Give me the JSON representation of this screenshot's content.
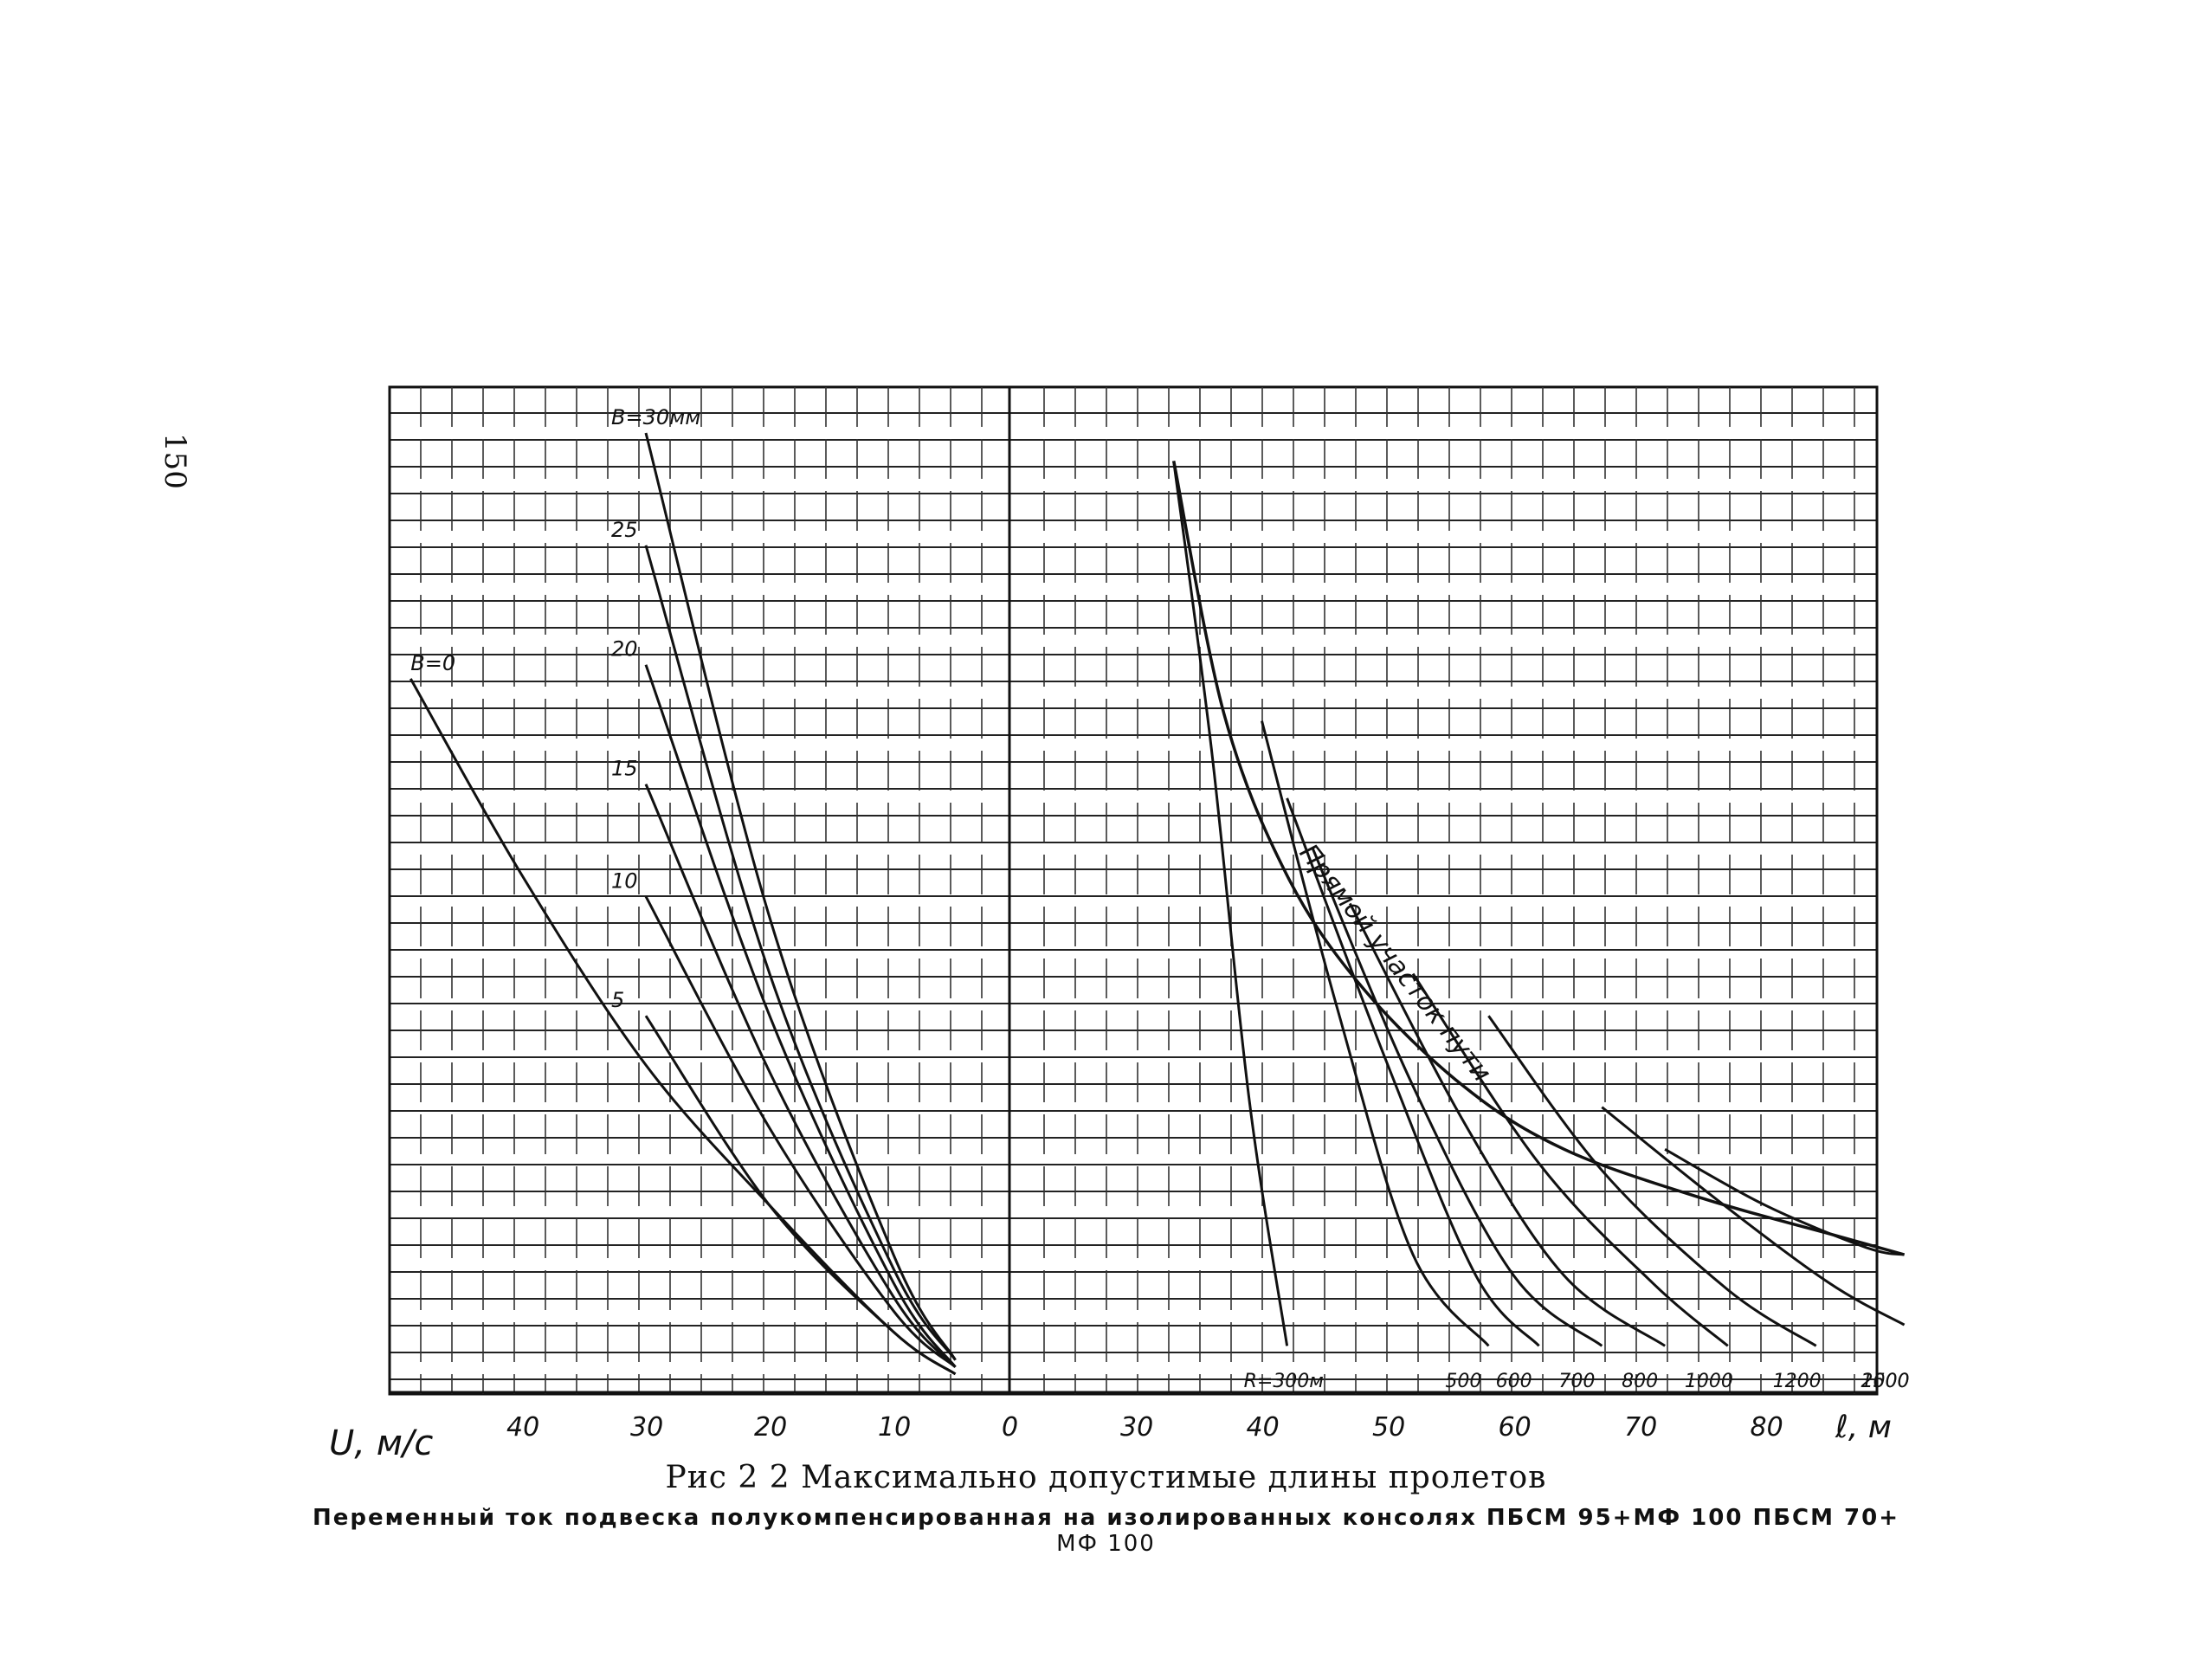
{
  "page_number": "150",
  "caption": {
    "title": "Рис 2 2 Максимально допустимые длины пролетов",
    "subtitle_line1": "Переменный ток подвеска полукомпенсированная на изолированных консолях ПБСМ 95+МФ 100 ПБСМ 70+",
    "subtitle_line2": "МФ 100"
  },
  "chart_data": [
    {
      "type": "line",
      "panel": "left",
      "xlabel": "U, м/с",
      "x_ticks": [
        "40",
        "30",
        "20",
        "10",
        "0"
      ],
      "x_tick_values": [
        40,
        30,
        20,
        10,
        0
      ],
      "x_reversed": true,
      "grid": true,
      "series": [
        {
          "name": "B=0",
          "points": [
            [
              49,
              1.0
            ],
            [
              40,
              0.72
            ],
            [
              30,
              0.45
            ],
            [
              20,
              0.25
            ],
            [
              10,
              0.07
            ],
            [
              5,
              0.01
            ]
          ]
        },
        {
          "name": "5",
          "points": [
            [
              30,
              0.52
            ],
            [
              20,
              0.25
            ],
            [
              10,
              0.07
            ],
            [
              5,
              0.01
            ]
          ]
        },
        {
          "name": "10",
          "points": [
            [
              30,
              0.69
            ],
            [
              20,
              0.36
            ],
            [
              10,
              0.1
            ],
            [
              5,
              0.02
            ]
          ]
        },
        {
          "name": "15",
          "points": [
            [
              30,
              0.85
            ],
            [
              20,
              0.44
            ],
            [
              10,
              0.12
            ],
            [
              5,
              0.02
            ]
          ]
        },
        {
          "name": "20",
          "points": [
            [
              30,
              1.02
            ],
            [
              20,
              0.52
            ],
            [
              10,
              0.14
            ],
            [
              5,
              0.02
            ]
          ]
        },
        {
          "name": "25",
          "points": [
            [
              30,
              1.19
            ],
            [
              20,
              0.58
            ],
            [
              10,
              0.16
            ],
            [
              5,
              0.03
            ]
          ]
        },
        {
          "name": "B=30мм",
          "points": [
            [
              30,
              1.35
            ],
            [
              20,
              0.66
            ],
            [
              10,
              0.18
            ],
            [
              5,
              0.03
            ]
          ]
        }
      ]
    },
    {
      "type": "line",
      "panel": "right",
      "xlabel": "ℓ, м",
      "x_ticks": [
        "30",
        "40",
        "50",
        "60",
        "70",
        "80"
      ],
      "x_tick_values": [
        30,
        40,
        50,
        60,
        70,
        80
      ],
      "grid": true,
      "envelope_label": "Прямой участок пути",
      "series": [
        {
          "name": "R=300м",
          "points": [
            [
              33,
              1.31
            ],
            [
              36,
              0.9
            ],
            [
              39,
              0.4
            ],
            [
              42,
              0.05
            ]
          ]
        },
        {
          "name": "500",
          "points": [
            [
              40,
              0.94
            ],
            [
              46,
              0.53
            ],
            [
              52,
              0.18
            ],
            [
              58,
              0.05
            ]
          ]
        },
        {
          "name": "600",
          "points": [
            [
              42,
              0.83
            ],
            [
              50,
              0.45
            ],
            [
              57,
              0.15
            ],
            [
              62,
              0.05
            ]
          ]
        },
        {
          "name": "700",
          "points": [
            [
              44,
              0.76
            ],
            [
              52,
              0.42
            ],
            [
              60,
              0.15
            ],
            [
              67,
              0.05
            ]
          ]
        },
        {
          "name": "800",
          "points": [
            [
              47,
              0.68
            ],
            [
              56,
              0.37
            ],
            [
              64,
              0.15
            ],
            [
              72,
              0.05
            ]
          ]
        },
        {
          "name": "1000",
          "points": [
            [
              52,
              0.58
            ],
            [
              62,
              0.31
            ],
            [
              71,
              0.14
            ],
            [
              77,
              0.05
            ]
          ]
        },
        {
          "name": "1200",
          "points": [
            [
              58,
              0.52
            ],
            [
              67,
              0.3
            ],
            [
              77,
              0.13
            ],
            [
              84,
              0.05
            ]
          ]
        },
        {
          "name": "1500",
          "points": [
            [
              67,
              0.39
            ],
            [
              76,
              0.26
            ],
            [
              85,
              0.14
            ],
            [
              91,
              0.08
            ]
          ]
        },
        {
          "name": "2000",
          "points": [
            [
              72,
              0.33
            ],
            [
              80,
              0.25
            ],
            [
              88,
              0.19
            ],
            [
              91,
              0.18
            ]
          ]
        },
        {
          "name": "Прямой участок пути",
          "points": [
            [
              33,
              1.31
            ],
            [
              37,
              0.95
            ],
            [
              42,
              0.72
            ],
            [
              48,
              0.56
            ],
            [
              56,
              0.42
            ],
            [
              64,
              0.33
            ],
            [
              75,
              0.26
            ],
            [
              85,
              0.21
            ],
            [
              91,
              0.18
            ]
          ]
        }
      ]
    }
  ]
}
